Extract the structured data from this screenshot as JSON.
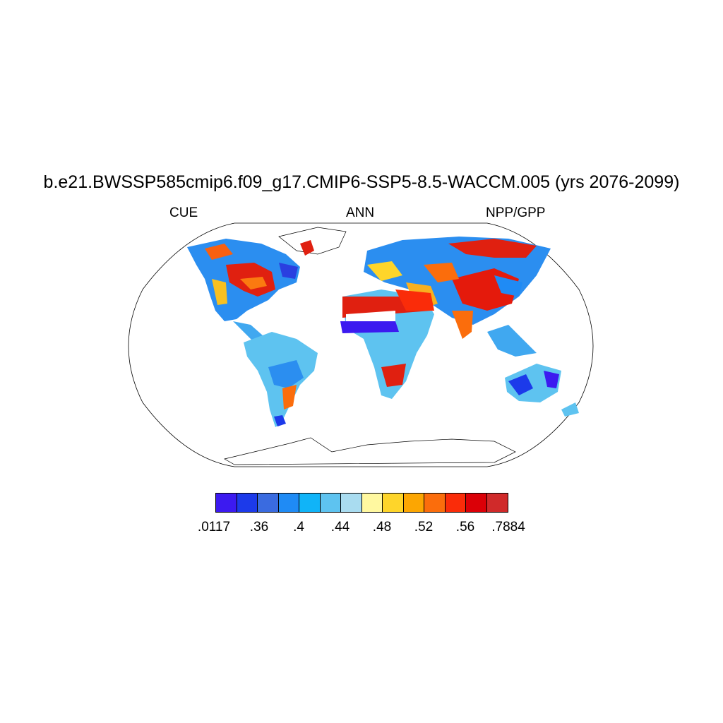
{
  "title": "b.e21.BWSSP585cmip6.f09_g17.CMIP6-SSP5-8.5-WACCM.005 (yrs 2076-2099)",
  "left_label": "CUE",
  "center_label": "ANN",
  "right_label": "NPP/GPP",
  "colorbar": {
    "colors": [
      "#3c1af0",
      "#1c3aea",
      "#3a6be0",
      "#1f8bf5",
      "#10b4f8",
      "#5ec3f0",
      "#a9dcf0",
      "#fff8a0",
      "#fed52a",
      "#fca602",
      "#fb6d0c",
      "#fa2c09",
      "#db0007",
      "#d02a2a"
    ],
    "tick_labels": [
      ".0117",
      ".36",
      ".4",
      ".44",
      ".48",
      ".52",
      ".56",
      ".7884"
    ]
  }
}
